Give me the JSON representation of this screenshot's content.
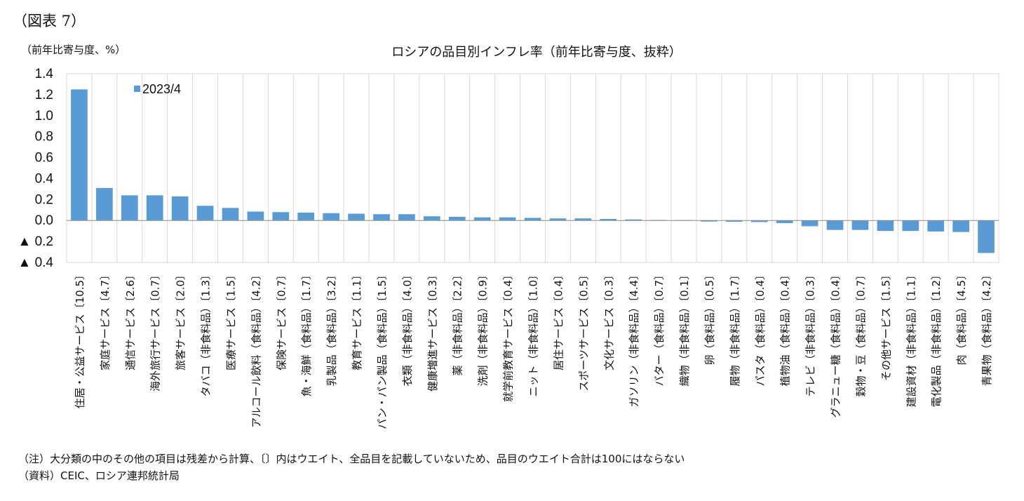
{
  "figure_label": "（図表 7）",
  "unit_label": "（前年比寄与度、%）",
  "notes": [
    "（注）大分類の中のその他の項目は残差から計算、〔〕内はウエイト、全品目を記載していないため、品目のウエイト合計は100にはならない",
    "（資料）CEIC、ロシア連邦統計局"
  ],
  "colors": {
    "bar": "#5b9bd5",
    "grid": "#d9d9d9",
    "axis": "#888888"
  },
  "chart_data": {
    "type": "bar",
    "title": "ロシアの品目別インフレ率（前年比寄与度、抜粋）",
    "ylim": [
      -0.4,
      1.4
    ],
    "yticks": [
      1.4,
      1.2,
      1.0,
      0.8,
      0.6,
      0.4,
      0.2,
      0.0,
      -0.2,
      -0.4
    ],
    "ytick_labels": [
      "1.4",
      "1.2",
      "1.0",
      "0.8",
      "0.6",
      "0.4",
      "0.2",
      "0.0",
      "▲ 0.2",
      "▲ 0.4"
    ],
    "grid": true,
    "legend_position": "top-left",
    "categories": [
      "住居・公益サービス〔10.5〕",
      "家庭サービス〔4.7〕",
      "通信サービス〔2.6〕",
      "海外旅行サービス〔0.7〕",
      "旅客サービス〔2.0〕",
      "タバコ（非食料品）〔1.3〕",
      "医療サービス〔1.5〕",
      "アルコール飲料（食料品）〔4.2〕",
      "保険サービス〔0.7〕",
      "魚・海鮮（食料品）〔1.7〕",
      "乳製品（食料品）〔3.2〕",
      "教育サービス〔1.1〕",
      "パン・パン製品（食料品）〔1.5〕",
      "衣類（非食料品）〔4.0〕",
      "健康増進サービス〔0.3〕",
      "薬（非食料品）〔2.2〕",
      "洗剤（非食料品）〔0.9〕",
      "就学前教育サービス〔0.4〕",
      "ニット（非食料品）〔1.0〕",
      "居住サービス〔0.4〕",
      "スポーツサービス〔0.5〕",
      "文化サービス〔0.3〕",
      "ガソリン（非食料品）〔4.4〕",
      "バター（食料品）〔0.7〕",
      "織物（非食料品）〔0.1〕",
      "卵（食料品）〔0.5〕",
      "履物（非食料品）〔1.7〕",
      "パスタ（食料品）〔0.4〕",
      "植物油（食料品）〔0.4〕",
      "テレビ（非食料品）〔0.3〕",
      "グラニュー糖（食料品）〔0.4〕",
      "穀物・豆（食料品）〔0.7〕",
      "その他サービス〔1.5〕",
      "建設資材（非食料品）〔1.1〕",
      "電化製品（非食料品）〔1.2〕",
      "肉（食料品）〔4.5〕",
      "青果物（食料品）〔4.2〕"
    ],
    "series": [
      {
        "name": "2023/4",
        "values": [
          1.25,
          0.31,
          0.24,
          0.24,
          0.23,
          0.14,
          0.12,
          0.085,
          0.08,
          0.075,
          0.07,
          0.065,
          0.06,
          0.06,
          0.04,
          0.035,
          0.03,
          0.03,
          0.025,
          0.02,
          0.02,
          0.015,
          0.01,
          0.005,
          0.003,
          -0.01,
          -0.012,
          -0.015,
          -0.025,
          -0.055,
          -0.09,
          -0.09,
          -0.1,
          -0.1,
          -0.105,
          -0.11,
          -0.31
        ]
      }
    ]
  }
}
